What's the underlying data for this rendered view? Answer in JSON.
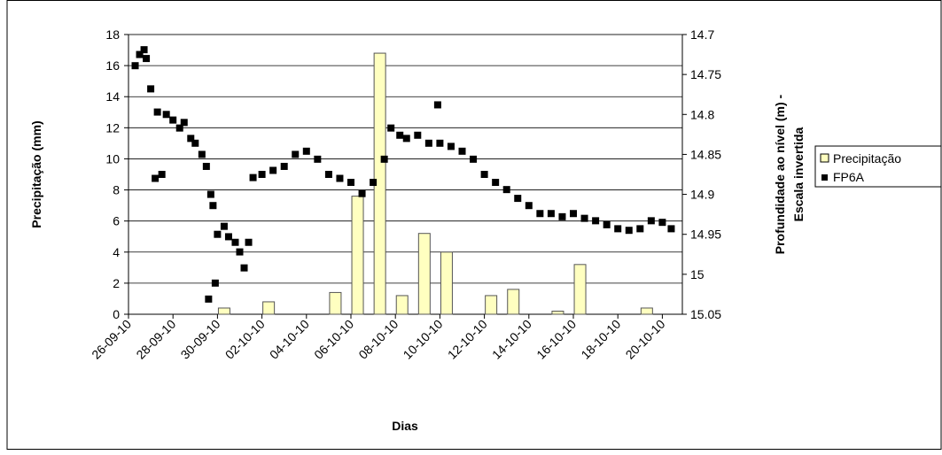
{
  "chart_data": {
    "type": "bar-scatter",
    "x_label": "Dias",
    "y_label": "Precipitação (mm)",
    "y2_label": [
      "Profundidade ao nível (m) -",
      "Escala invertida"
    ],
    "xlim": [
      0,
      24.9
    ],
    "xticks": [
      {
        "value": 0,
        "label": "26-09-10"
      },
      {
        "value": 2,
        "label": "28-09-10"
      },
      {
        "value": 4,
        "label": "30-09-10"
      },
      {
        "value": 6,
        "label": "02-10-10"
      },
      {
        "value": 8,
        "label": "04-10-10"
      },
      {
        "value": 10,
        "label": "06-10-10"
      },
      {
        "value": 12,
        "label": "08-10-10"
      },
      {
        "value": 14,
        "label": "10-10-10"
      },
      {
        "value": 16,
        "label": "12-10-10"
      },
      {
        "value": 18,
        "label": "14-10-10"
      },
      {
        "value": 20,
        "label": "16-10-10"
      },
      {
        "value": 22,
        "label": "18-10-10"
      },
      {
        "value": 24,
        "label": "20-10-10"
      }
    ],
    "ylim": [
      0,
      18
    ],
    "yticks": [
      0,
      2,
      4,
      6,
      8,
      10,
      12,
      14,
      16,
      18
    ],
    "y2lim": [
      15.05,
      14.7
    ],
    "y2ticks": [
      14.7,
      14.75,
      14.8,
      14.85,
      14.9,
      14.95,
      15,
      15.05
    ],
    "y2_inverted": true,
    "grid": true,
    "legend": "right",
    "series": [
      {
        "name": "Precipitação",
        "kind": "bar",
        "color": "#ffffc0",
        "x": [
          4.3,
          6.3,
          9.3,
          10.3,
          11.3,
          12.3,
          13.3,
          14.3,
          16.3,
          17.3,
          19.3,
          20.3,
          23.3
        ],
        "values": [
          0.4,
          0.8,
          1.4,
          7.6,
          16.8,
          1.2,
          5.2,
          4.0,
          1.2,
          1.6,
          0.2,
          3.2,
          0.4
        ]
      },
      {
        "name": "FP6A",
        "kind": "scatter",
        "axis": "y2",
        "color": "#000000",
        "x": [
          0.3,
          0.5,
          0.7,
          0.8,
          1.0,
          1.2,
          1.3,
          1.5,
          1.7,
          2.0,
          2.3,
          2.5,
          2.8,
          3.0,
          3.3,
          3.5,
          3.6,
          3.7,
          3.8,
          3.9,
          4.0,
          4.3,
          4.5,
          4.8,
          5.0,
          5.2,
          5.4,
          5.6,
          6.0,
          6.5,
          7.0,
          7.5,
          8.0,
          8.5,
          9.0,
          9.5,
          10.0,
          10.5,
          11.0,
          11.5,
          11.8,
          12.2,
          12.5,
          13.0,
          13.5,
          13.9,
          14.0,
          14.5,
          15.0,
          15.5,
          16.0,
          16.5,
          17.0,
          17.5,
          18.0,
          18.5,
          19.0,
          19.5,
          20.0,
          20.5,
          21.0,
          21.5,
          22.0,
          22.5,
          23.0,
          23.5,
          24.0,
          24.4
        ],
        "values": [
          14.739,
          14.725,
          14.719,
          14.73,
          14.768,
          14.88,
          14.797,
          14.875,
          14.8,
          14.807,
          14.817,
          14.81,
          14.83,
          14.836,
          14.85,
          14.865,
          15.031,
          14.9,
          14.914,
          15.011,
          14.95,
          14.94,
          14.953,
          14.96,
          14.972,
          14.992,
          14.96,
          14.879,
          14.875,
          14.87,
          14.865,
          14.85,
          14.846,
          14.856,
          14.875,
          14.88,
          14.885,
          14.899,
          14.885,
          14.856,
          14.817,
          14.826,
          14.83,
          14.826,
          14.836,
          14.788,
          14.836,
          14.84,
          14.846,
          14.856,
          14.875,
          14.885,
          14.894,
          14.905,
          14.914,
          14.924,
          14.924,
          14.928,
          14.924,
          14.93,
          14.933,
          14.938,
          14.943,
          14.945,
          14.943,
          14.933,
          14.935,
          14.943
        ]
      }
    ]
  }
}
